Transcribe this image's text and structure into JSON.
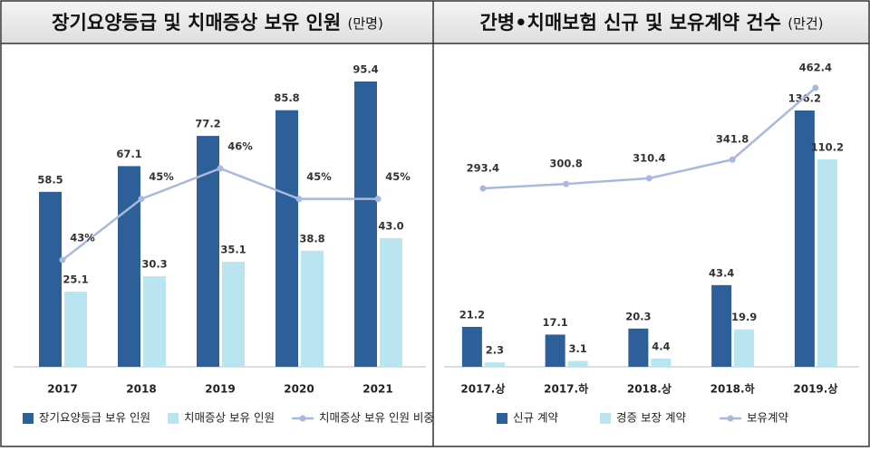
{
  "chart_data": [
    {
      "type": "bar",
      "title": "장기요양등급 및 치매증상 보유 인원",
      "unit": "(만명)",
      "categories": [
        "2017",
        "2018",
        "2019",
        "2020",
        "2021"
      ],
      "series": [
        {
          "name": "장기요양등급 보유 인원",
          "color": "#2d5f98",
          "values": [
            58.5,
            67.1,
            77.2,
            85.8,
            95.4
          ]
        },
        {
          "name": "치매증상 보유 인원",
          "color": "#b8e5f0",
          "values": [
            25.1,
            30.3,
            35.1,
            38.8,
            43.0
          ],
          "value_labels": [
            "25.1",
            "30.3",
            "35.1",
            "38.8",
            "43.0"
          ]
        },
        {
          "name": "치매증상 보유 인원 비중",
          "color": "#a9b8de",
          "type": "line",
          "axis": "y2",
          "values": [
            43,
            45,
            46,
            45,
            45
          ],
          "value_labels": [
            "43%",
            "45%",
            "46%",
            "45%",
            "45%"
          ]
        }
      ],
      "legend": "bottom"
    },
    {
      "type": "bar",
      "title": "간병•치매보험 신규 및 보유계약 건수",
      "unit": "(만건)",
      "categories": [
        "2017.상",
        "2017.하",
        "2018.상",
        "2018.하",
        "2019.상"
      ],
      "series": [
        {
          "name": "신규 계약",
          "color": "#2d5f98",
          "values": [
            21.2,
            17.1,
            20.3,
            43.4,
            136.2
          ]
        },
        {
          "name": "경증 보장 계약",
          "color": "#b8e5f0",
          "values": [
            2.3,
            3.1,
            4.4,
            19.9,
            110.2
          ]
        },
        {
          "name": "보유계약",
          "color": "#a9b8de",
          "type": "line",
          "axis": "y2",
          "values": [
            293.4,
            300.8,
            310.4,
            341.8,
            462.4
          ]
        }
      ],
      "legend": "bottom"
    }
  ]
}
